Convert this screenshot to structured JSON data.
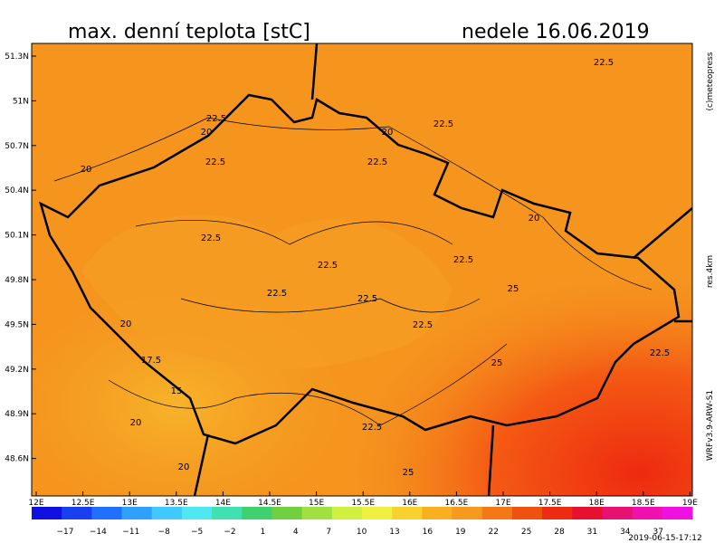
{
  "header": {
    "title": "max. denní teplota [stC]",
    "date": "nedele 16.06.2019"
  },
  "axes": {
    "lat_labels": [
      "51.3N",
      "51N",
      "50.7N",
      "50.4N",
      "50.1N",
      "49.8N",
      "49.5N",
      "49.2N",
      "48.9N",
      "48.6N"
    ],
    "lon_labels": [
      "12E",
      "12.5E",
      "13E",
      "13.5E",
      "14E",
      "14.5E",
      "15E",
      "15.5E",
      "16E",
      "16.5E",
      "17E",
      "17.5E",
      "18E",
      "18.5E",
      "19E"
    ]
  },
  "colorbar": {
    "labels": [
      "−17",
      "−14",
      "−11",
      "−8",
      "−5",
      "−2",
      "1",
      "4",
      "7",
      "10",
      "13",
      "16",
      "19",
      "22",
      "25",
      "28",
      "31",
      "34",
      "37"
    ]
  },
  "contour_labels": [
    "22.5",
    "22.5",
    "22.5",
    "22.5",
    "22.5",
    "22.5",
    "22.5",
    "22.5",
    "22.5",
    "22.5",
    "22.5",
    "22.5",
    "22.5",
    "20",
    "20",
    "20",
    "20",
    "20",
    "20",
    "20",
    "25",
    "25",
    "25",
    "17.5",
    "15"
  ],
  "credits": {
    "copyright": "(c)meteopress",
    "resolution": "res.4km",
    "model": "WRFv3.9-ARW-S1",
    "timestamp": "2019-06-15-17:12"
  }
}
